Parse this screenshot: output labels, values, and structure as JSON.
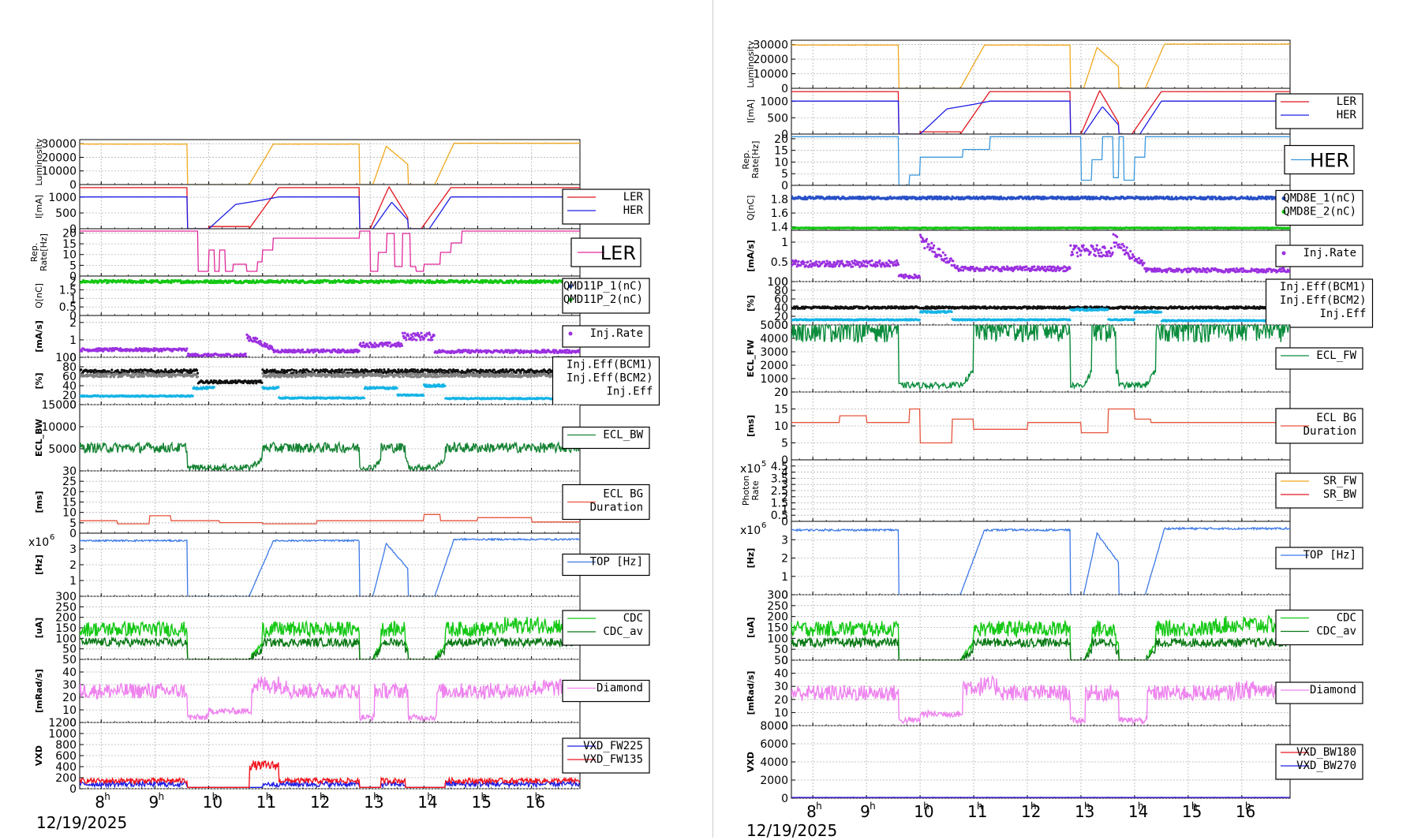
{
  "date": "12/19/2025",
  "x_ticks": [
    "8",
    "9",
    "10",
    "11",
    "12",
    "13",
    "14",
    "15",
    "16"
  ],
  "x_tick_prefix": "0m0s",
  "colors": {
    "luminosity": "#f0a81e",
    "ler": "#e0141e",
    "her": "#1e1ee6",
    "rep_ler": "#e0289b",
    "rep_her": "#3c98dc",
    "q_green": "#14c814",
    "q_blue": "#2850c8",
    "inj_rate": "#9b30e0",
    "inj_black": "#111111",
    "inj_gray": "#808080",
    "inj_cyan": "#14b4e6",
    "ecl_bw": "#148232",
    "ecl_fw": "#0a8c3c",
    "ecl_bg": "#e6553c",
    "sr_fw": "#f0a81e",
    "sr_bw": "#e0141e",
    "top": "#3c78e6",
    "cdc": "#14c814",
    "cdc_av": "#0a7814",
    "diamond": "#ee82ee",
    "vxd_a": "#1e1ee6",
    "vxd_b": "#f0141e"
  },
  "chart_data": [
    {
      "panel_group": "LER",
      "charts": [
        {
          "key": "lum",
          "type": "line",
          "ylabel": "Luminosity",
          "yticks": [
            "0",
            "10000",
            "20000",
            "30000"
          ],
          "ylim": [
            0,
            33000
          ],
          "series": [
            {
              "color": "luminosity",
              "profile": "lum"
            }
          ],
          "legend": []
        },
        {
          "key": "cur",
          "type": "line",
          "ylabel": "I[mA]",
          "yticks": [
            "0",
            "500",
            "1000"
          ],
          "ylim": [
            0,
            1400
          ],
          "series": [
            {
              "name": "LER",
              "color": "ler",
              "profile": "ler_main"
            },
            {
              "name": "HER",
              "color": "her",
              "profile": "her_main"
            }
          ],
          "legend": [
            {
              "label": "LER",
              "color": "ler",
              "kind": "line"
            },
            {
              "label": "HER",
              "color": "her",
              "kind": "line"
            }
          ]
        },
        {
          "key": "rep",
          "type": "line",
          "ylabel": "Rep. Rate[Hz]",
          "yticks": [
            "0",
            "5",
            "10",
            "15",
            "20"
          ],
          "ylim": [
            0,
            22
          ],
          "series": [
            {
              "color": "rep_ler",
              "profile": "rep_ler"
            }
          ],
          "legend": [
            {
              "label": "LER",
              "color": "rep_ler",
              "kind": "line",
              "big": true
            }
          ]
        },
        {
          "key": "q",
          "type": "scatter",
          "ylabel": "Q[nC]",
          "yticks": [
            "0",
            "0.5",
            "1",
            "1.5",
            "2"
          ],
          "ylim": [
            0,
            2.3
          ],
          "series": [
            {
              "name": "QMD11P_1(nC)",
              "color": "q_blue",
              "profile": "flat_none"
            },
            {
              "name": "QMD11P_2(nC)",
              "color": "q_green",
              "profile": "q_ler"
            }
          ],
          "legend": [
            {
              "label": "QMD11P_1(nC)",
              "color": "q_blue",
              "kind": "dot"
            },
            {
              "label": "QMD11P_2(nC)",
              "color": "q_green",
              "kind": "dot"
            }
          ]
        },
        {
          "key": "rate",
          "type": "scatter",
          "ylabel": "[mA/s]",
          "yticks": [
            "0",
            "1",
            "2"
          ],
          "ylim": [
            0,
            2.4
          ],
          "series": [
            {
              "name": "Inj.Rate",
              "color": "inj_rate",
              "profile": "rate_ler"
            }
          ],
          "legend": [
            {
              "label": "Inj.Rate",
              "color": "inj_rate",
              "kind": "dot"
            }
          ]
        },
        {
          "key": "eff",
          "type": "scatter",
          "ylabel": "[%]",
          "yticks": [
            "0",
            "20",
            "40",
            "60",
            "80",
            "100"
          ],
          "ylim": [
            0,
            100
          ],
          "series": [
            {
              "name": "Inj.Eff(BCM1)",
              "color": "inj_black",
              "profile": "eff_black"
            },
            {
              "name": "Inj.Eff(BCM2)",
              "color": "inj_gray",
              "profile": "eff_gray"
            },
            {
              "name": "Inj.Eff",
              "color": "inj_cyan",
              "profile": "eff_cyan_ler"
            }
          ],
          "legend": [
            {
              "label": "Inj.Eff(BCM1)",
              "color": "inj_black",
              "kind": "none"
            },
            {
              "label": "Inj.Eff(BCM2)",
              "color": "inj_gray",
              "kind": "none"
            },
            {
              "label": "Inj.Eff",
              "color": "inj_cyan",
              "kind": "none"
            }
          ]
        },
        {
          "key": "ecl",
          "type": "area",
          "ylabel": "ECL_BW",
          "yticks": [
            "5000",
            "10000",
            "15000"
          ],
          "ylim": [
            0,
            15000
          ],
          "series": [
            {
              "name": "ECL_BW",
              "color": "ecl_bw",
              "profile": "ecl_bw"
            }
          ],
          "legend": [
            {
              "label": "ECL_BW",
              "color": "ecl_bw",
              "kind": "line"
            }
          ]
        },
        {
          "key": "eclbg",
          "type": "line",
          "ylabel": "[ms]",
          "yticks": [
            "0",
            "5",
            "10",
            "15",
            "20",
            "25",
            "30"
          ],
          "ylim": [
            0,
            30
          ],
          "series": [
            {
              "name": "ECL BG Duration",
              "color": "ecl_bg",
              "profile": "eclbg_ler"
            }
          ],
          "legend": [
            {
              "label": "ECL BG\nDuration",
              "color": "ecl_bg",
              "kind": "line"
            }
          ]
        },
        {
          "key": "top",
          "type": "line",
          "ylabel": "[Hz]",
          "yticks": [
            "1",
            "2",
            "3"
          ],
          "ylim": [
            0,
            4
          ],
          "multiplier": "x10",
          "multiplier_exp": "6",
          "series": [
            {
              "name": "TOP [Hz]",
              "color": "top",
              "profile": "top"
            }
          ],
          "legend": [
            {
              "label": "TOP [Hz]",
              "color": "top",
              "kind": "line"
            }
          ]
        },
        {
          "key": "cdc",
          "type": "area",
          "ylabel": "[uA]",
          "yticks": [
            "50",
            "100",
            "150",
            "200",
            "250",
            "300"
          ],
          "ylim": [
            0,
            300
          ],
          "series": [
            {
              "name": "CDC",
              "color": "cdc",
              "profile": "cdc"
            },
            {
              "name": "CDC_av",
              "color": "cdc_av",
              "profile": "cdc_av"
            }
          ],
          "legend": [
            {
              "label": "CDC",
              "color": "cdc",
              "kind": "line"
            },
            {
              "label": "CDC_av",
              "color": "cdc_av",
              "kind": "line"
            }
          ]
        },
        {
          "key": "dia",
          "type": "area",
          "ylabel": "[mRad/s]",
          "yticks": [
            "0",
            "10",
            "20",
            "30",
            "40",
            "50"
          ],
          "ylim": [
            0,
            50
          ],
          "series": [
            {
              "name": "Diamond",
              "color": "diamond",
              "profile": "diamond"
            }
          ],
          "legend": [
            {
              "label": "Diamond",
              "color": "diamond",
              "kind": "line"
            }
          ]
        },
        {
          "key": "vxd",
          "type": "area",
          "ylabel": "VXD",
          "yticks": [
            "0",
            "200",
            "400",
            "600",
            "800",
            "1000",
            "1200"
          ],
          "ylim": [
            0,
            1200
          ],
          "series": [
            {
              "name": "VXD_FW225",
              "color": "vxd_a",
              "profile": "vxd_blue"
            },
            {
              "name": "VXD_FW135",
              "color": "vxd_b",
              "profile": "vxd_red"
            }
          ],
          "legend": [
            {
              "label": "VXD_FW225",
              "color": "vxd_a",
              "kind": "line"
            },
            {
              "label": "VXD_FW135",
              "color": "vxd_b",
              "kind": "line"
            }
          ]
        }
      ]
    },
    {
      "panel_group": "HER",
      "charts": [
        {
          "key": "lum",
          "type": "line",
          "ylabel": "Luminosity",
          "yticks": [
            "0",
            "10000",
            "20000",
            "30000"
          ],
          "ylim": [
            0,
            33000
          ],
          "series": [
            {
              "color": "luminosity",
              "profile": "lum"
            }
          ],
          "legend": []
        },
        {
          "key": "cur",
          "type": "line",
          "ylabel": "I[mA]",
          "yticks": [
            "0",
            "500",
            "1000"
          ],
          "ylim": [
            0,
            1400
          ],
          "series": [
            {
              "name": "LER",
              "color": "ler",
              "profile": "ler_main"
            },
            {
              "name": "HER",
              "color": "her",
              "profile": "her_main"
            }
          ],
          "legend": [
            {
              "label": "LER",
              "color": "ler",
              "kind": "line"
            },
            {
              "label": "HER",
              "color": "her",
              "kind": "line"
            }
          ]
        },
        {
          "key": "rep",
          "type": "line",
          "ylabel": "Rep. Rate[Hz]",
          "yticks": [
            "0",
            "5",
            "10",
            "15",
            "20"
          ],
          "ylim": [
            0,
            22
          ],
          "series": [
            {
              "color": "rep_her",
              "profile": "rep_her"
            }
          ],
          "legend": [
            {
              "label": "HER",
              "color": "rep_her",
              "kind": "line",
              "big": true
            }
          ]
        },
        {
          "key": "q",
          "type": "scatter",
          "ylabel": "Q[nC]",
          "yticks": [
            "1.4",
            "1.6",
            "1.8"
          ],
          "ylim": [
            1.35,
            2.0
          ],
          "series": [
            {
              "name": "QMD8E_1(nC)",
              "color": "q_blue",
              "profile": "q_her"
            },
            {
              "name": "QMD8E_2(nC)",
              "color": "q_green",
              "profile": "q_her_green"
            }
          ],
          "legend": [
            {
              "label": "QMD8E_1(nC)",
              "color": "q_blue",
              "kind": "dot"
            },
            {
              "label": "QMD8E_2(nC)",
              "color": "q_green",
              "kind": "dot"
            }
          ]
        },
        {
          "key": "rate",
          "type": "scatter",
          "ylabel": "[mA/s]",
          "yticks": [
            "0",
            "0.5",
            "1"
          ],
          "ylim": [
            0,
            1.3
          ],
          "series": [
            {
              "name": "Inj.Rate",
              "color": "inj_rate",
              "profile": "rate_her"
            }
          ],
          "legend": [
            {
              "label": "Inj.Rate",
              "color": "inj_rate",
              "kind": "dot"
            }
          ]
        },
        {
          "key": "eff",
          "type": "scatter",
          "ylabel": "[%]",
          "yticks": [
            "0",
            "20",
            "40",
            "60",
            "80",
            "100"
          ],
          "ylim": [
            0,
            100
          ],
          "series": [
            {
              "name": "Inj.Eff(BCM1)",
              "color": "inj_black",
              "profile": "eff_black_her"
            },
            {
              "name": "Inj.Eff(BCM2)",
              "color": "inj_gray",
              "profile": "flat_none"
            },
            {
              "name": "Inj.Eff",
              "color": "inj_cyan",
              "profile": "eff_cyan_her"
            }
          ],
          "legend": [
            {
              "label": "Inj.Eff(BCM1)",
              "color": "inj_black",
              "kind": "none"
            },
            {
              "label": "Inj.Eff(BCM2)",
              "color": "inj_gray",
              "kind": "none"
            },
            {
              "label": "Inj.Eff",
              "color": "inj_cyan",
              "kind": "none"
            }
          ]
        },
        {
          "key": "ecl",
          "type": "area",
          "ylabel": "ECL_FW",
          "yticks": [
            "0",
            "1000",
            "2000",
            "3000",
            "4000",
            "5000"
          ],
          "ylim": [
            0,
            5000
          ],
          "series": [
            {
              "name": "ECL_FW",
              "color": "ecl_fw",
              "profile": "ecl_fw"
            }
          ],
          "legend": [
            {
              "label": "ECL_FW",
              "color": "ecl_fw",
              "kind": "line"
            }
          ]
        },
        {
          "key": "eclbg",
          "type": "line",
          "ylabel": "[ms]",
          "yticks": [
            "0",
            "5",
            "10",
            "15",
            "20"
          ],
          "ylim": [
            0,
            20
          ],
          "series": [
            {
              "name": "ECL BG Duration",
              "color": "ecl_bg",
              "profile": "eclbg_her"
            }
          ],
          "legend": [
            {
              "label": "ECL BG\nDuration",
              "color": "ecl_bg",
              "kind": "line"
            }
          ]
        },
        {
          "key": "sr",
          "type": "line",
          "ylabel": "Photon Rate",
          "yticks": [
            "0",
            "0.5",
            "1",
            "1.5",
            "2",
            "2.5",
            "3",
            "3.5",
            "4",
            "4.5"
          ],
          "ylim": [
            0,
            5
          ],
          "multiplier": "x10",
          "multiplier_exp": "5",
          "series": [
            {
              "name": "SR_FW",
              "color": "sr_fw",
              "profile": "flat_none"
            },
            {
              "name": "SR_BW",
              "color": "sr_bw",
              "profile": "flat_none"
            }
          ],
          "legend": [
            {
              "label": "SR_FW",
              "color": "sr_fw",
              "kind": "line"
            },
            {
              "label": "SR_BW",
              "color": "sr_bw",
              "kind": "line"
            }
          ]
        },
        {
          "key": "top",
          "type": "line",
          "ylabel": "[Hz]",
          "yticks": [
            "0",
            "1",
            "2",
            "3"
          ],
          "ylim": [
            0,
            4
          ],
          "multiplier": "x10",
          "multiplier_exp": "6",
          "series": [
            {
              "name": "TOP [Hz]",
              "color": "top",
              "profile": "top"
            }
          ],
          "legend": [
            {
              "label": "TOP [Hz]",
              "color": "top",
              "kind": "line"
            }
          ]
        },
        {
          "key": "cdc",
          "type": "area",
          "ylabel": "[uA]",
          "yticks": [
            "0",
            "50",
            "100",
            "150",
            "200",
            "250",
            "300"
          ],
          "ylim": [
            0,
            300
          ],
          "series": [
            {
              "name": "CDC",
              "color": "cdc",
              "profile": "cdc"
            },
            {
              "name": "CDC_av",
              "color": "cdc_av",
              "profile": "cdc_av"
            }
          ],
          "legend": [
            {
              "label": "CDC",
              "color": "cdc",
              "kind": "line"
            },
            {
              "label": "CDC_av",
              "color": "cdc_av",
              "kind": "line"
            }
          ]
        },
        {
          "key": "dia",
          "type": "area",
          "ylabel": "[mRad/s]",
          "yticks": [
            "0",
            "10",
            "20",
            "30",
            "40",
            "50"
          ],
          "ylim": [
            0,
            50
          ],
          "series": [
            {
              "name": "Diamond",
              "color": "diamond",
              "profile": "diamond"
            }
          ],
          "legend": [
            {
              "label": "Diamond",
              "color": "diamond",
              "kind": "line"
            }
          ]
        },
        {
          "key": "vxd",
          "type": "area",
          "ylabel": "VXD",
          "yticks": [
            "0",
            "2000",
            "4000",
            "6000",
            "8000"
          ],
          "ylim": [
            0,
            8000
          ],
          "series": [
            {
              "name": "VXD_BW180",
              "color": "vxd_b",
              "profile": "vxd_bw_red"
            },
            {
              "name": "VXD_BW270",
              "color": "vxd_a",
              "profile": "vxd_bw_blue"
            }
          ],
          "legend": [
            {
              "label": "VXD_BW180",
              "color": "vxd_b",
              "kind": "line"
            },
            {
              "label": "VXD_BW270",
              "color": "vxd_a",
              "kind": "line"
            }
          ]
        }
      ]
    }
  ]
}
